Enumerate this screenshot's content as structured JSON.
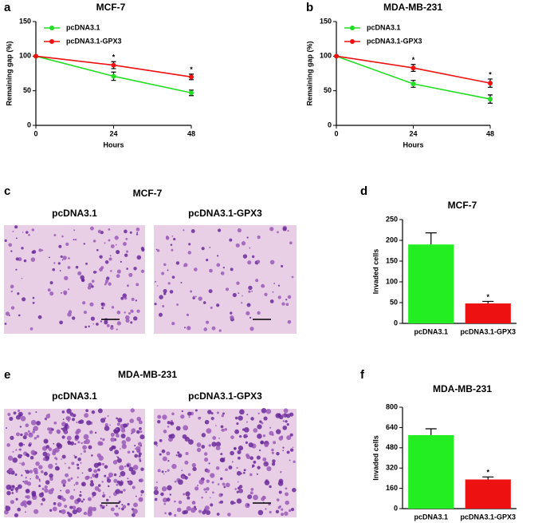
{
  "panel_letters": [
    "a",
    "b",
    "c",
    "d",
    "e",
    "f"
  ],
  "image_panels": [
    {
      "title": "MCF-7",
      "labels": [
        "pcDNA3.1",
        "pcDNA3.1-GPX3"
      ]
    },
    {
      "title": "MDA-MB-231",
      "labels": [
        "pcDNA3.1",
        "pcDNA3.1-GPX3"
      ]
    }
  ],
  "chart_data": [
    {
      "type": "line",
      "title": "MCF-7",
      "xlabel": "Hours",
      "ylabel": "Remaining gap (%)",
      "x": [
        0,
        24,
        48
      ],
      "xlim": [
        0,
        48
      ],
      "xticks": [
        0,
        24,
        48
      ],
      "ylim": [
        0,
        150
      ],
      "yticks": [
        0,
        50,
        100,
        150
      ],
      "legend": "upper left",
      "series": [
        {
          "name": "pcDNA3.1",
          "color": "#22dd22",
          "values": [
            100,
            71,
            47
          ],
          "errors": [
            0,
            6,
            4
          ]
        },
        {
          "name": "pcDNA3.1-GPX3",
          "color": "#ee1111",
          "values": [
            100,
            87,
            70
          ],
          "errors": [
            0,
            5,
            4
          ]
        }
      ],
      "annotations": [
        {
          "text": "*",
          "x": 24
        },
        {
          "text": "*",
          "x": 48
        }
      ]
    },
    {
      "type": "line",
      "title": "MDA-MB-231",
      "xlabel": "Hours",
      "ylabel": "Remaining gap (%)",
      "x": [
        0,
        24,
        48
      ],
      "xlim": [
        0,
        48
      ],
      "xticks": [
        0,
        24,
        48
      ],
      "ylim": [
        0,
        150
      ],
      "yticks": [
        0,
        50,
        100,
        150
      ],
      "legend": "upper left",
      "series": [
        {
          "name": "pcDNA3.1",
          "color": "#22dd22",
          "values": [
            100,
            60,
            38
          ],
          "errors": [
            0,
            5,
            6
          ]
        },
        {
          "name": "pcDNA3.1-GPX3",
          "color": "#ee1111",
          "values": [
            100,
            83,
            61
          ],
          "errors": [
            0,
            5,
            6
          ]
        }
      ],
      "annotations": [
        {
          "text": "*",
          "x": 24
        },
        {
          "text": "*",
          "x": 48
        }
      ]
    },
    {
      "type": "bar",
      "title": "MCF-7",
      "ylabel": "Invaded cells",
      "categories": [
        "pcDNA3.1",
        "pcDNA3.1-GPX3"
      ],
      "values": [
        190,
        48
      ],
      "errors": [
        28,
        5
      ],
      "colors": [
        "#22ee22",
        "#ee1111"
      ],
      "ylim": [
        0,
        250
      ],
      "yticks": [
        0,
        50,
        100,
        150,
        200,
        250
      ],
      "annotations": [
        {
          "text": "*",
          "category": 1
        }
      ]
    },
    {
      "type": "bar",
      "title": "MDA-MB-231",
      "ylabel": "Invaded cells",
      "categories": [
        "pcDNA3.1",
        "pcDNA3.1-GPX3"
      ],
      "values": [
        580,
        230
      ],
      "errors": [
        50,
        20
      ],
      "colors": [
        "#22ee22",
        "#ee1111"
      ],
      "ylim": [
        0,
        800
      ],
      "yticks": [
        0,
        160,
        320,
        480,
        640,
        800
      ],
      "annotations": [
        {
          "text": "*",
          "category": 1
        }
      ]
    }
  ]
}
